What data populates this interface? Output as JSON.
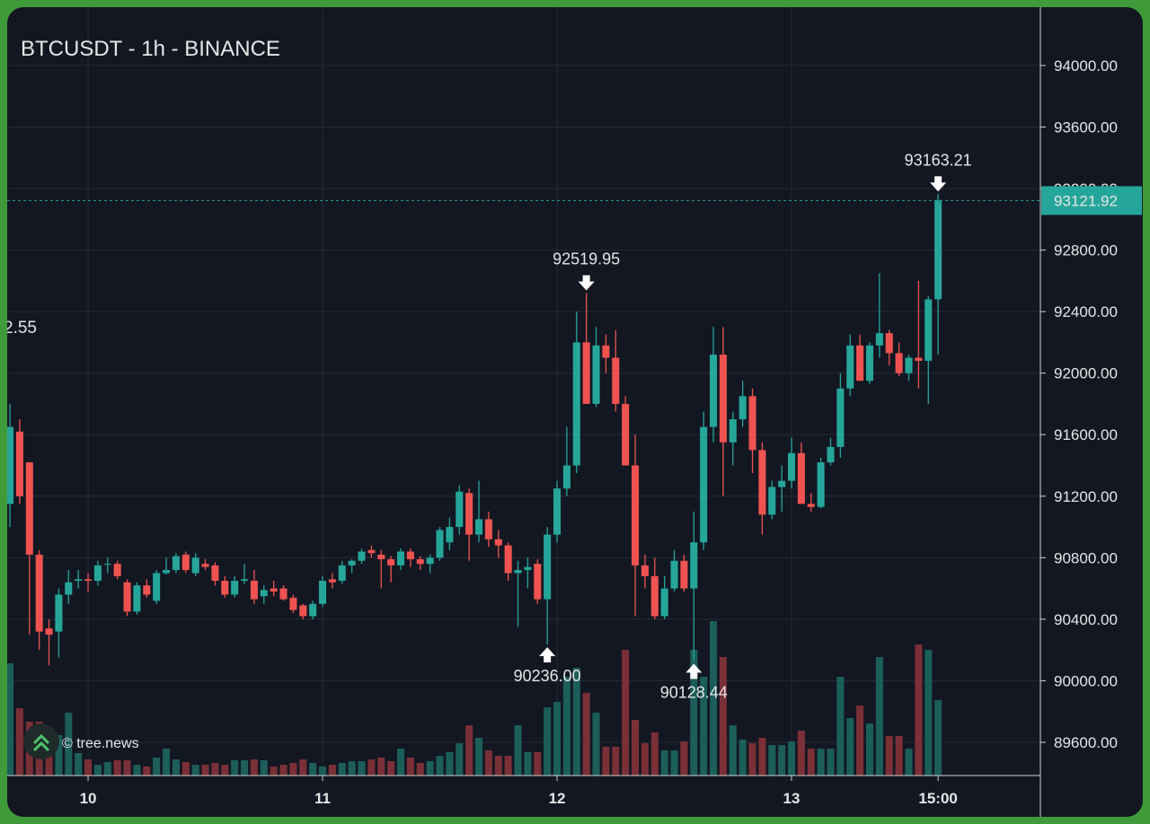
{
  "chart_data": {
    "type": "candlestick",
    "title": "BTCUSDT - 1h - BINANCE",
    "watermark": "© tree.news",
    "open": [
      91150,
      91620,
      91420,
      90820,
      90340,
      90320,
      90560,
      90650,
      90660,
      90650,
      90760,
      90760,
      90640,
      90450,
      90620,
      90520,
      90700,
      90720,
      90820,
      90700,
      90760,
      90750,
      90650,
      90560,
      90650,
      90650,
      90550,
      90600,
      90600,
      90540,
      90490,
      90420,
      90500,
      90660,
      90650,
      90750,
      90780,
      90850,
      90820,
      90790,
      90750,
      90840,
      90790,
      90760,
      90800,
      90900,
      91000,
      91220,
      90950,
      91050,
      90920,
      90880,
      90700,
      90720,
      90760,
      90530,
      90950,
      91250,
      91400,
      92200,
      91800,
      92180,
      92100,
      91800,
      91400,
      90750,
      90680,
      90420,
      90600,
      90780,
      90600,
      90900,
      91650,
      92120,
      91550,
      91700,
      91850,
      91500,
      91080,
      91260,
      91300,
      91480,
      91150,
      91130,
      91420,
      91520,
      91900,
      92180,
      91950,
      92180,
      92260,
      92130,
      92000,
      92100,
      92080,
      92480
    ],
    "high": [
      91800,
      91700,
      91420,
      90850,
      90400,
      90600,
      90720,
      90720,
      90700,
      90780,
      90800,
      90780,
      90660,
      90640,
      90660,
      90720,
      90800,
      90830,
      90840,
      90830,
      90790,
      90770,
      90680,
      90680,
      90760,
      90720,
      90620,
      90650,
      90620,
      90560,
      90500,
      90520,
      90680,
      90700,
      90780,
      90790,
      90860,
      90880,
      90850,
      90810,
      90860,
      90860,
      90810,
      90820,
      91000,
      91060,
      91270,
      91250,
      91300,
      91100,
      90980,
      90900,
      90780,
      90800,
      90790,
      91000,
      91300,
      91650,
      92400,
      92519.95,
      92300,
      92250,
      92280,
      91850,
      91600,
      90820,
      90800,
      90680,
      90850,
      90820,
      91100,
      91750,
      92300,
      92300,
      91750,
      91950,
      91900,
      91550,
      91300,
      91400,
      91580,
      91550,
      91220,
      91450,
      91580,
      92000,
      92250,
      92250,
      92200,
      92650,
      92280,
      92200,
      92120,
      92600,
      92500,
      93163.21
    ],
    "low": [
      91000,
      91150,
      90300,
      90200,
      90100,
      90150,
      90500,
      90600,
      90580,
      90620,
      90700,
      90660,
      90420,
      90430,
      90540,
      90500,
      90690,
      90700,
      90700,
      90680,
      90720,
      90620,
      90540,
      90540,
      90630,
      90500,
      90500,
      90550,
      90520,
      90440,
      90400,
      90400,
      90480,
      90600,
      90630,
      90700,
      90760,
      90800,
      90600,
      90640,
      90720,
      90740,
      90720,
      90700,
      90780,
      90850,
      90950,
      90780,
      90900,
      90870,
      90800,
      90650,
      90350,
      90600,
      90500,
      90236,
      90900,
      91200,
      91350,
      91800,
      91780,
      92000,
      91750,
      91400,
      90420,
      90600,
      90400,
      90400,
      90580,
      90580,
      90128.44,
      90850,
      91550,
      91200,
      91400,
      91650,
      91350,
      90950,
      91050,
      91100,
      91250,
      91150,
      91100,
      91120,
      91400,
      91450,
      91850,
      91950,
      91930,
      92100,
      92050,
      91980,
      91950,
      91900,
      91800,
      92120
    ],
    "close": [
      91650,
      91200,
      90820,
      90320,
      90300,
      90560,
      90640,
      90660,
      90650,
      90750,
      90760,
      90680,
      90450,
      90620,
      90560,
      90700,
      90720,
      90810,
      90720,
      90800,
      90740,
      90650,
      90560,
      90650,
      90660,
      90530,
      90590,
      90580,
      90530,
      90460,
      90420,
      90500,
      90650,
      90640,
      90750,
      90780,
      90840,
      90830,
      90790,
      90750,
      90840,
      90790,
      90760,
      90800,
      90980,
      91000,
      91230,
      90950,
      91050,
      90920,
      90880,
      90700,
      90720,
      90740,
      90530,
      90950,
      91250,
      91400,
      92200,
      91800,
      92180,
      92100,
      91800,
      91400,
      90750,
      90680,
      90420,
      90600,
      90780,
      90600,
      90900,
      91650,
      92120,
      91550,
      91700,
      91850,
      91500,
      91080,
      91260,
      91300,
      91480,
      91150,
      91130,
      91420,
      91520,
      91900,
      92180,
      91950,
      92180,
      92260,
      92130,
      92000,
      92100,
      92080,
      92480,
      93121.92
    ],
    "volume": [
      125,
      75,
      60,
      60,
      35,
      45,
      70,
      25,
      18,
      12,
      15,
      17,
      17,
      12,
      10,
      20,
      30,
      18,
      15,
      12,
      12,
      14,
      12,
      17,
      17,
      18,
      17,
      10,
      12,
      14,
      18,
      14,
      10,
      12,
      14,
      16,
      16,
      18,
      20,
      16,
      30,
      20,
      14,
      16,
      22,
      26,
      36,
      56,
      42,
      28,
      22,
      22,
      56,
      26,
      26,
      76,
      82,
      110,
      120,
      92,
      70,
      32,
      32,
      140,
      62,
      36,
      48,
      28,
      28,
      38,
      140,
      110,
      172,
      132,
      56,
      40,
      36,
      42,
      34,
      34,
      38,
      50,
      30,
      30,
      30,
      110,
      64,
      78,
      58,
      132,
      44,
      44,
      30,
      146,
      140,
      84
    ],
    "up_color": "#26a69a",
    "down_color": "#ef5350",
    "volume_up_color": "#1b5e5a",
    "volume_down_color": "#7b2f36",
    "ylim": [
      89384,
      94379
    ],
    "yticks": [
      {
        "value": 89600,
        "label": "89600.00"
      },
      {
        "value": 90000,
        "label": "90000.00"
      },
      {
        "value": 90400,
        "label": "90400.00"
      },
      {
        "value": 90800,
        "label": "90800.00"
      },
      {
        "value": 91200,
        "label": "91200.00"
      },
      {
        "value": 91600,
        "label": "91600.00"
      },
      {
        "value": 92000,
        "label": "92000.00"
      },
      {
        "value": 92400,
        "label": "92400.00"
      },
      {
        "value": 92800,
        "label": "92800.00"
      },
      {
        "value": 93200,
        "label": "93200.00"
      },
      {
        "value": 93600,
        "label": "93600.00"
      },
      {
        "value": 94000,
        "label": "94000.00"
      }
    ],
    "xlim": [
      -0.28,
      105.47
    ],
    "xticks": [
      {
        "value": 8,
        "label": "10"
      },
      {
        "value": 32,
        "label": "11"
      },
      {
        "value": 56,
        "label": "12"
      },
      {
        "value": 80,
        "label": "13"
      },
      {
        "value": 95,
        "label": "15:00"
      }
    ],
    "grid": true,
    "last_price": {
      "value": 93121.92,
      "label": "93121.92"
    },
    "annotations": [
      {
        "candle": 59,
        "at": "high",
        "label": "92519.95"
      },
      {
        "candle": 55,
        "at": "low",
        "label": "90236.00"
      },
      {
        "candle": 70,
        "at": "low",
        "label": "90128.44"
      },
      {
        "candle": 95,
        "at": "high",
        "label": "93163.21"
      }
    ],
    "partial_annotation": "2.55"
  }
}
